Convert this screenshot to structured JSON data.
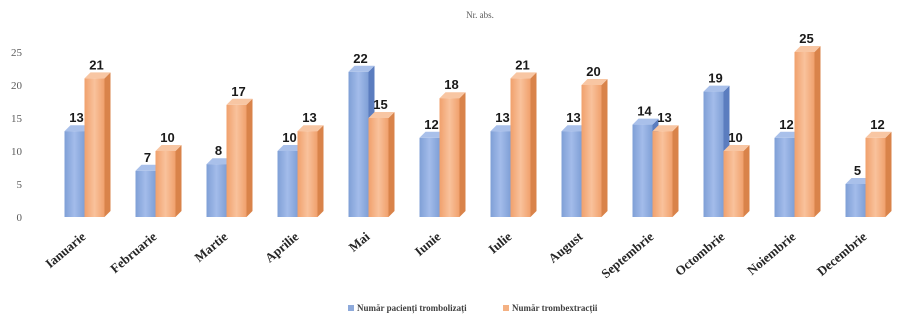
{
  "chart_data": {
    "type": "bar",
    "title": "Nr. abs.",
    "categories": [
      "Ianuarie",
      "Februarie",
      "Martie",
      "Aprilie",
      "Mai",
      "Iunie",
      "Iulie",
      "August",
      "Septembrie",
      "Octombrie",
      "Noiembrie",
      "Decembrie"
    ],
    "series": [
      {
        "name": "Număr pacienți trombolizați",
        "values": [
          13,
          7,
          8,
          10,
          22,
          12,
          13,
          13,
          14,
          19,
          12,
          5
        ],
        "color": "#8eaadb"
      },
      {
        "name": "Număr trombextracții",
        "values": [
          21,
          10,
          17,
          13,
          15,
          18,
          21,
          20,
          13,
          10,
          25,
          12
        ],
        "color": "#f4b183"
      }
    ],
    "ylim": [
      0,
      25
    ],
    "yticks": [
      0,
      5,
      10,
      15,
      20,
      25
    ],
    "grid": false,
    "legend_position": "bottom"
  }
}
